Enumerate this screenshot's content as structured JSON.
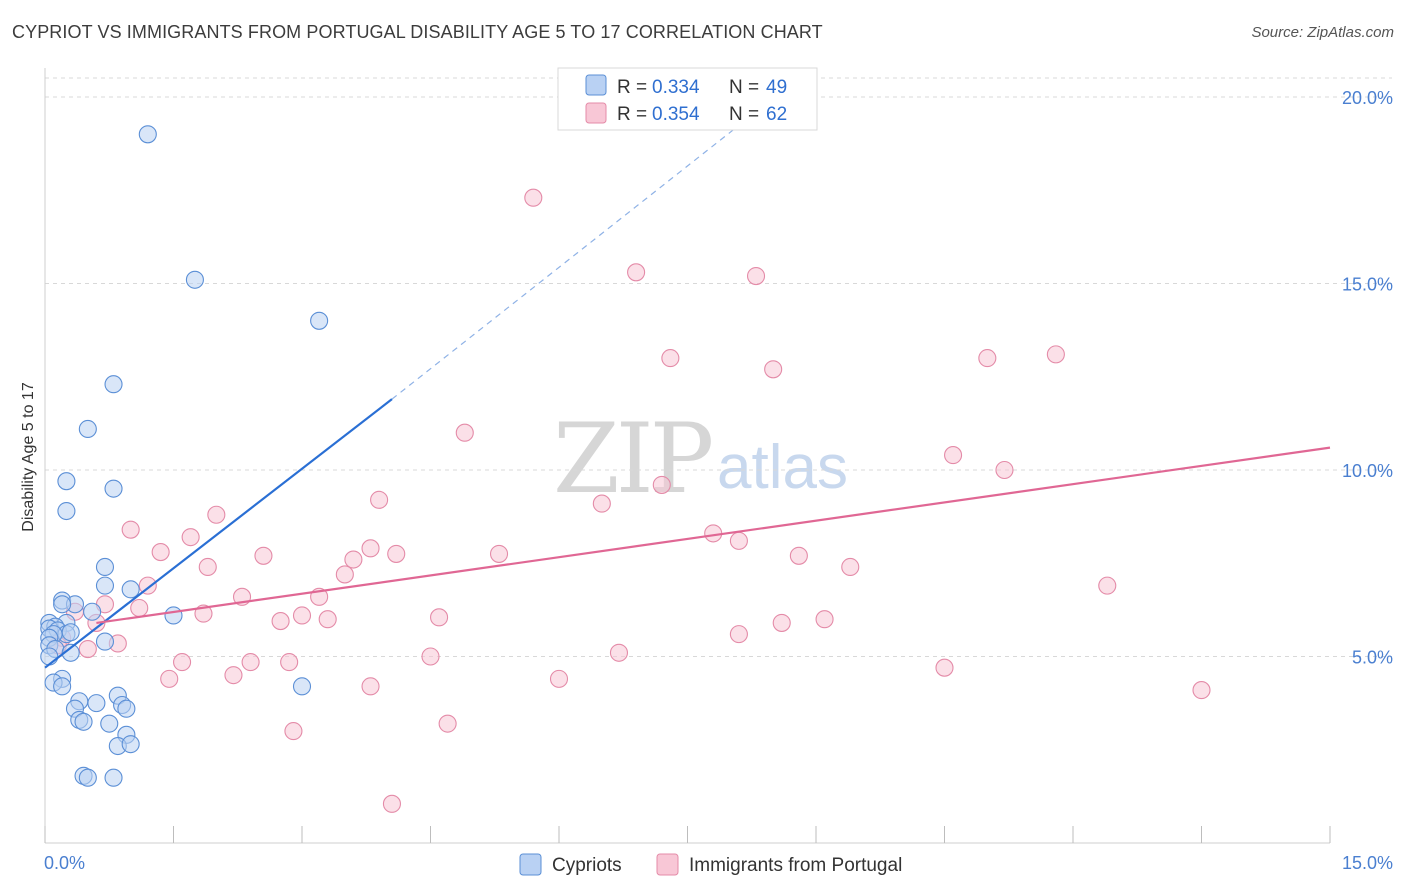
{
  "title": "CYPRIOT VS IMMIGRANTS FROM PORTUGAL DISABILITY AGE 5 TO 17 CORRELATION CHART",
  "source": "Source: ZipAtlas.com",
  "watermark": {
    "zip": "ZIP",
    "atlas": "atlas"
  },
  "colors": {
    "blue_fill": "#b9d1f3",
    "blue_stroke": "#5b8fd6",
    "blue_line": "#2a6fd4",
    "pink_fill": "#f8c7d6",
    "pink_stroke": "#e48ba8",
    "pink_line": "#e06794",
    "tick_text": "#4a7fd0",
    "grid": "#d8d8d8"
  },
  "legend_box": {
    "rows": [
      {
        "r_label": "R = ",
        "r_value": "0.334",
        "n_label": "N = ",
        "n_value": "49"
      },
      {
        "r_label": "R = ",
        "r_value": "0.354",
        "n_label": "N = ",
        "n_value": "62"
      }
    ]
  },
  "bottom_legend": [
    "Cypriots",
    "Immigrants from Portugal"
  ],
  "chart_data": {
    "type": "scatter",
    "ylabel": "Disability Age 5 to 17",
    "xlim": [
      0,
      15
    ],
    "ylim": [
      0,
      20
    ],
    "y_ticks": [
      5,
      10,
      15,
      20
    ],
    "y_tick_labels": [
      "5.0%",
      "10.0%",
      "15.0%",
      "20.0%"
    ],
    "x_tick_labels": [
      "0.0%",
      "15.0%"
    ],
    "grid": true,
    "legend_position": "top-center",
    "series": [
      {
        "name": "Cypriots",
        "R": 0.334,
        "N": 49,
        "trend": {
          "x": [
            0,
            4.05
          ],
          "y": [
            4.7,
            11.9
          ],
          "dashed_extension_to": [
            8.3,
            19.6
          ]
        },
        "points": [
          [
            1.2,
            19.0
          ],
          [
            1.75,
            15.1
          ],
          [
            3.2,
            14.0
          ],
          [
            0.8,
            12.3
          ],
          [
            0.5,
            11.1
          ],
          [
            0.25,
            9.7
          ],
          [
            0.25,
            8.9
          ],
          [
            0.8,
            9.5
          ],
          [
            0.7,
            7.4
          ],
          [
            0.7,
            6.9
          ],
          [
            1.0,
            6.8
          ],
          [
            1.5,
            6.1
          ],
          [
            0.2,
            6.5
          ],
          [
            0.35,
            6.4
          ],
          [
            0.2,
            6.4
          ],
          [
            0.55,
            6.2
          ],
          [
            0.25,
            5.9
          ],
          [
            0.05,
            5.9
          ],
          [
            0.12,
            5.8
          ],
          [
            0.05,
            5.75
          ],
          [
            0.15,
            5.7
          ],
          [
            0.25,
            5.6
          ],
          [
            0.1,
            5.6
          ],
          [
            0.05,
            5.5
          ],
          [
            0.7,
            5.4
          ],
          [
            0.05,
            5.3
          ],
          [
            0.12,
            5.2
          ],
          [
            0.3,
            5.1
          ],
          [
            0.05,
            5.0
          ],
          [
            0.2,
            4.4
          ],
          [
            0.1,
            4.3
          ],
          [
            0.2,
            4.2
          ],
          [
            3.0,
            4.2
          ],
          [
            0.4,
            3.8
          ],
          [
            0.85,
            3.95
          ],
          [
            0.6,
            3.75
          ],
          [
            0.9,
            3.7
          ],
          [
            0.95,
            3.6
          ],
          [
            0.35,
            3.6
          ],
          [
            0.4,
            3.3
          ],
          [
            0.75,
            3.2
          ],
          [
            0.45,
            3.25
          ],
          [
            0.95,
            2.9
          ],
          [
            0.85,
            2.6
          ],
          [
            1.0,
            2.65
          ],
          [
            0.45,
            1.8
          ],
          [
            0.5,
            1.75
          ],
          [
            0.8,
            1.75
          ],
          [
            0.3,
            5.65
          ]
        ]
      },
      {
        "name": "Immigrants from Portugal",
        "R": 0.354,
        "N": 62,
        "trend": {
          "x": [
            0.6,
            15.0
          ],
          "y": [
            5.9,
            10.6
          ]
        },
        "points": [
          [
            5.7,
            17.3
          ],
          [
            6.9,
            15.3
          ],
          [
            8.3,
            15.2
          ],
          [
            7.3,
            13.0
          ],
          [
            8.5,
            12.7
          ],
          [
            11.0,
            13.0
          ],
          [
            11.8,
            13.1
          ],
          [
            4.9,
            11.0
          ],
          [
            10.6,
            10.4
          ],
          [
            11.2,
            10.0
          ],
          [
            7.2,
            9.6
          ],
          [
            3.9,
            9.2
          ],
          [
            6.5,
            9.1
          ],
          [
            2.0,
            8.8
          ],
          [
            1.0,
            8.4
          ],
          [
            7.8,
            8.3
          ],
          [
            1.7,
            8.2
          ],
          [
            8.1,
            8.1
          ],
          [
            3.8,
            7.9
          ],
          [
            1.35,
            7.8
          ],
          [
            2.55,
            7.7
          ],
          [
            4.1,
            7.75
          ],
          [
            5.3,
            7.75
          ],
          [
            3.6,
            7.6
          ],
          [
            8.8,
            7.7
          ],
          [
            9.4,
            7.4
          ],
          [
            1.9,
            7.4
          ],
          [
            3.5,
            7.2
          ],
          [
            1.2,
            6.9
          ],
          [
            12.4,
            6.9
          ],
          [
            2.3,
            6.6
          ],
          [
            3.2,
            6.6
          ],
          [
            0.7,
            6.4
          ],
          [
            1.1,
            6.3
          ],
          [
            0.35,
            6.2
          ],
          [
            1.85,
            6.15
          ],
          [
            3.0,
            6.1
          ],
          [
            3.3,
            6.0
          ],
          [
            4.6,
            6.05
          ],
          [
            2.75,
            5.95
          ],
          [
            0.6,
            5.9
          ],
          [
            9.1,
            6.0
          ],
          [
            8.6,
            5.9
          ],
          [
            8.1,
            5.6
          ],
          [
            0.85,
            5.35
          ],
          [
            0.5,
            5.2
          ],
          [
            6.7,
            5.1
          ],
          [
            4.5,
            5.0
          ],
          [
            1.6,
            4.85
          ],
          [
            2.4,
            4.85
          ],
          [
            2.85,
            4.85
          ],
          [
            10.5,
            4.7
          ],
          [
            0.2,
            5.5
          ],
          [
            2.2,
            4.5
          ],
          [
            1.45,
            4.4
          ],
          [
            6.0,
            4.4
          ],
          [
            3.8,
            4.2
          ],
          [
            13.5,
            4.1
          ],
          [
            4.7,
            3.2
          ],
          [
            2.9,
            3.0
          ],
          [
            4.05,
            1.05
          ],
          [
            0.15,
            5.3
          ]
        ]
      }
    ]
  }
}
